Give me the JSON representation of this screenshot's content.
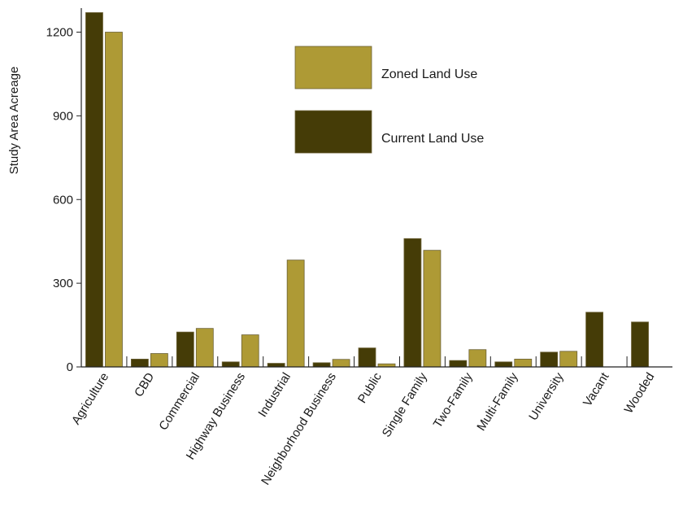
{
  "chart_data": {
    "type": "bar",
    "title": "",
    "xlabel": "",
    "ylabel": "Study Area Acreage",
    "ylim": [
      0,
      1270
    ],
    "yticks": [
      0,
      300,
      600,
      900,
      1200
    ],
    "grid": false,
    "legend_position": "top-center",
    "categories": [
      "Agriculture",
      "CBD",
      "Commercial",
      "Highway Business",
      "Industrial",
      "Neighborhood Business",
      "Public",
      "Single Family",
      "Two-Family",
      "Multi-Family",
      "University",
      "Vacant",
      "Wooded"
    ],
    "series": [
      {
        "name": "Current Land Use",
        "color": "#453c07",
        "values": [
          1270,
          28,
          125,
          18,
          13,
          15,
          68,
          460,
          23,
          18,
          53,
          196,
          161
        ]
      },
      {
        "name": "Zoned Land Use",
        "color": "#ae9a35",
        "values": [
          1200,
          48,
          138,
          115,
          383,
          27,
          11,
          418,
          62,
          28,
          56,
          0,
          0
        ]
      }
    ],
    "legend_order": [
      "Zoned Land Use",
      "Current Land Use"
    ]
  }
}
